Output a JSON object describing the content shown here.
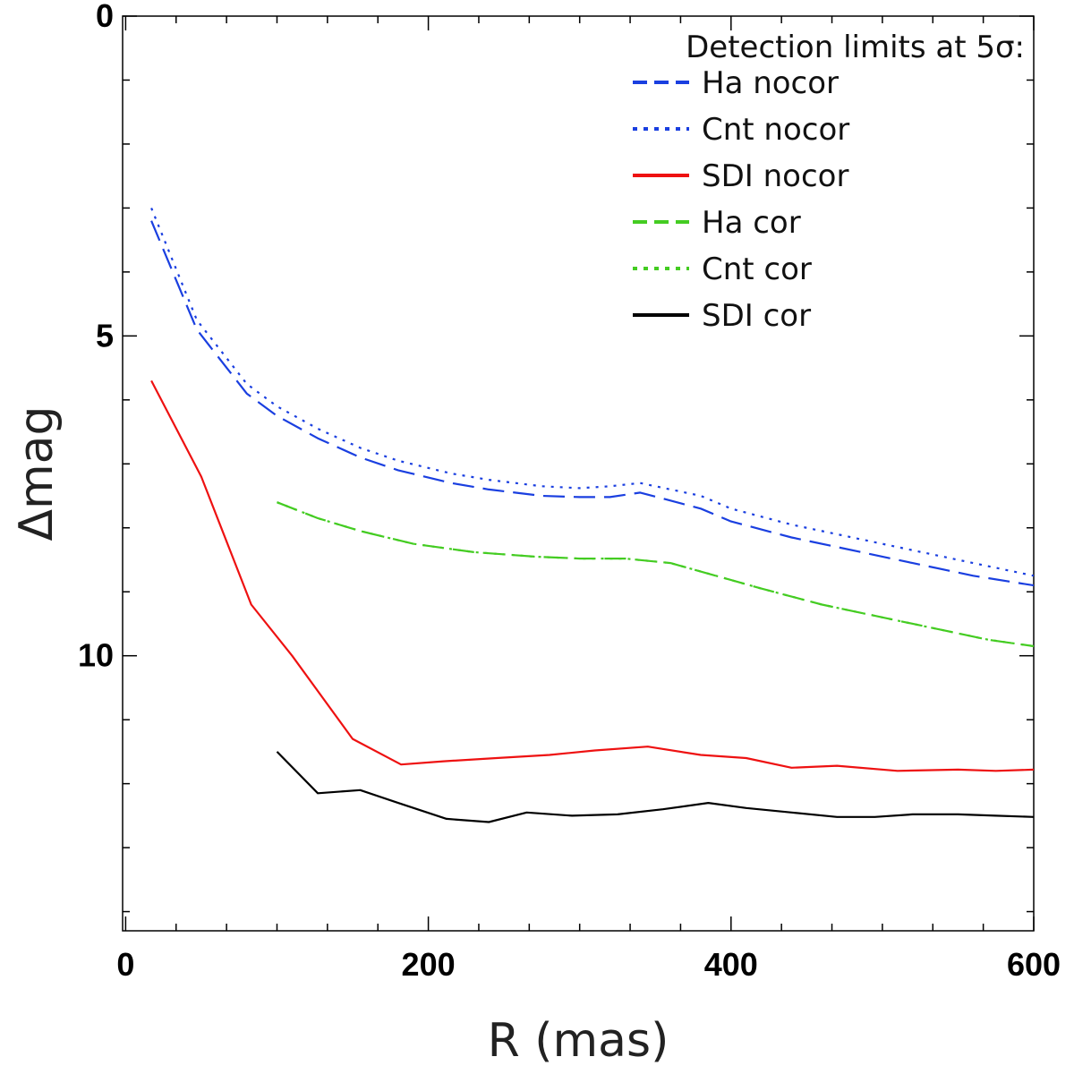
{
  "chart_data": {
    "type": "line",
    "title": "",
    "xlabel": "R (mas)",
    "ylabel": "Δmag",
    "xlim": [
      -2,
      600
    ],
    "ylim": [
      0,
      14.3
    ],
    "y_inverted": true,
    "xticks": [
      0,
      200,
      400,
      600
    ],
    "yticks": [
      0,
      5,
      10
    ],
    "legend": {
      "title": "Detection limits at 5σ:",
      "placement": "top-right"
    },
    "series": [
      {
        "name": "Ha nocor",
        "color": "#1a3fe0",
        "style": "dashed",
        "x": [
          17,
          47,
          80,
          100,
          127,
          155,
          180,
          215,
          240,
          275,
          300,
          320,
          340,
          380,
          400,
          440,
          470,
          520,
          560,
          600
        ],
        "y": [
          3.2,
          4.9,
          5.9,
          6.25,
          6.6,
          6.9,
          7.1,
          7.3,
          7.4,
          7.5,
          7.52,
          7.52,
          7.45,
          7.7,
          7.9,
          8.15,
          8.3,
          8.55,
          8.75,
          8.9
        ]
      },
      {
        "name": "Cnt nocor",
        "color": "#1a3fe0",
        "style": "dotted",
        "x": [
          17,
          47,
          80,
          100,
          127,
          155,
          180,
          215,
          240,
          275,
          300,
          320,
          340,
          380,
          400,
          440,
          470,
          520,
          560,
          600
        ],
        "y": [
          3.0,
          4.75,
          5.75,
          6.1,
          6.45,
          6.75,
          6.95,
          7.15,
          7.25,
          7.35,
          7.38,
          7.35,
          7.3,
          7.5,
          7.7,
          7.95,
          8.1,
          8.35,
          8.55,
          8.75
        ]
      },
      {
        "name": "SDI nocor",
        "color": "#ee1111",
        "style": "solid",
        "x": [
          17,
          50,
          83,
          110,
          150,
          182,
          210,
          245,
          280,
          310,
          345,
          380,
          410,
          440,
          470,
          510,
          550,
          575,
          600
        ],
        "y": [
          5.7,
          7.2,
          9.2,
          10.0,
          11.3,
          11.7,
          11.65,
          11.6,
          11.55,
          11.48,
          11.42,
          11.55,
          11.6,
          11.75,
          11.72,
          11.8,
          11.78,
          11.8,
          11.78
        ]
      },
      {
        "name": "Ha cor",
        "color": "#44cc22",
        "style": "dashed",
        "x": [
          100,
          127,
          155,
          190,
          230,
          270,
          300,
          330,
          360,
          390,
          420,
          460,
          500,
          540,
          570,
          600
        ],
        "y": [
          7.6,
          7.85,
          8.05,
          8.25,
          8.38,
          8.45,
          8.48,
          8.48,
          8.55,
          8.75,
          8.95,
          9.2,
          9.4,
          9.6,
          9.75,
          9.85
        ]
      },
      {
        "name": "Cnt cor",
        "color": "#44cc22",
        "style": "dotted",
        "x": [
          100,
          127,
          155,
          190,
          230,
          270,
          300,
          330,
          360,
          390,
          420,
          460,
          500,
          540,
          570,
          600
        ],
        "y": [
          7.6,
          7.85,
          8.05,
          8.25,
          8.38,
          8.45,
          8.48,
          8.48,
          8.55,
          8.75,
          8.95,
          9.2,
          9.4,
          9.6,
          9.75,
          9.85
        ]
      },
      {
        "name": "SDI cor",
        "color": "#000000",
        "style": "solid",
        "x": [
          100,
          127,
          155,
          180,
          212,
          240,
          265,
          295,
          325,
          355,
          385,
          410,
          440,
          470,
          495,
          520,
          550,
          575,
          600
        ],
        "y": [
          11.5,
          12.15,
          12.1,
          12.3,
          12.55,
          12.6,
          12.45,
          12.5,
          12.48,
          12.4,
          12.3,
          12.38,
          12.45,
          12.52,
          12.52,
          12.48,
          12.48,
          12.5,
          12.52
        ]
      }
    ]
  }
}
